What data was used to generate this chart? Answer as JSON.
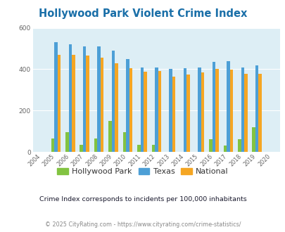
{
  "title": "Hollywood Park Violent Crime Index",
  "years": [
    2004,
    2005,
    2006,
    2007,
    2008,
    2009,
    2010,
    2011,
    2012,
    2013,
    2014,
    2015,
    2016,
    2017,
    2018,
    2019,
    2020
  ],
  "hollywood_park": [
    0,
    65,
    95,
    35,
    65,
    150,
    95,
    35,
    35,
    0,
    0,
    0,
    62,
    30,
    62,
    120,
    0
  ],
  "texas": [
    0,
    530,
    520,
    510,
    510,
    490,
    450,
    410,
    410,
    400,
    405,
    410,
    435,
    440,
    408,
    420,
    0
  ],
  "national": [
    0,
    468,
    470,
    465,
    455,
    428,
    404,
    388,
    390,
    365,
    375,
    383,
    400,
    397,
    378,
    378,
    0
  ],
  "hp_color": "#82c341",
  "texas_color": "#4d9fd6",
  "national_color": "#f5a623",
  "plot_bg": "#ddeef5",
  "title_color": "#1a6fa8",
  "ylim": [
    0,
    600
  ],
  "yticks": [
    0,
    200,
    400,
    600
  ],
  "subtitle": "Crime Index corresponds to incidents per 100,000 inhabitants",
  "footer": "© 2025 CityRating.com - https://www.cityrating.com/crime-statistics/",
  "legend_labels": [
    "Hollywood Park",
    "Texas",
    "National"
  ],
  "bar_width": 0.22
}
